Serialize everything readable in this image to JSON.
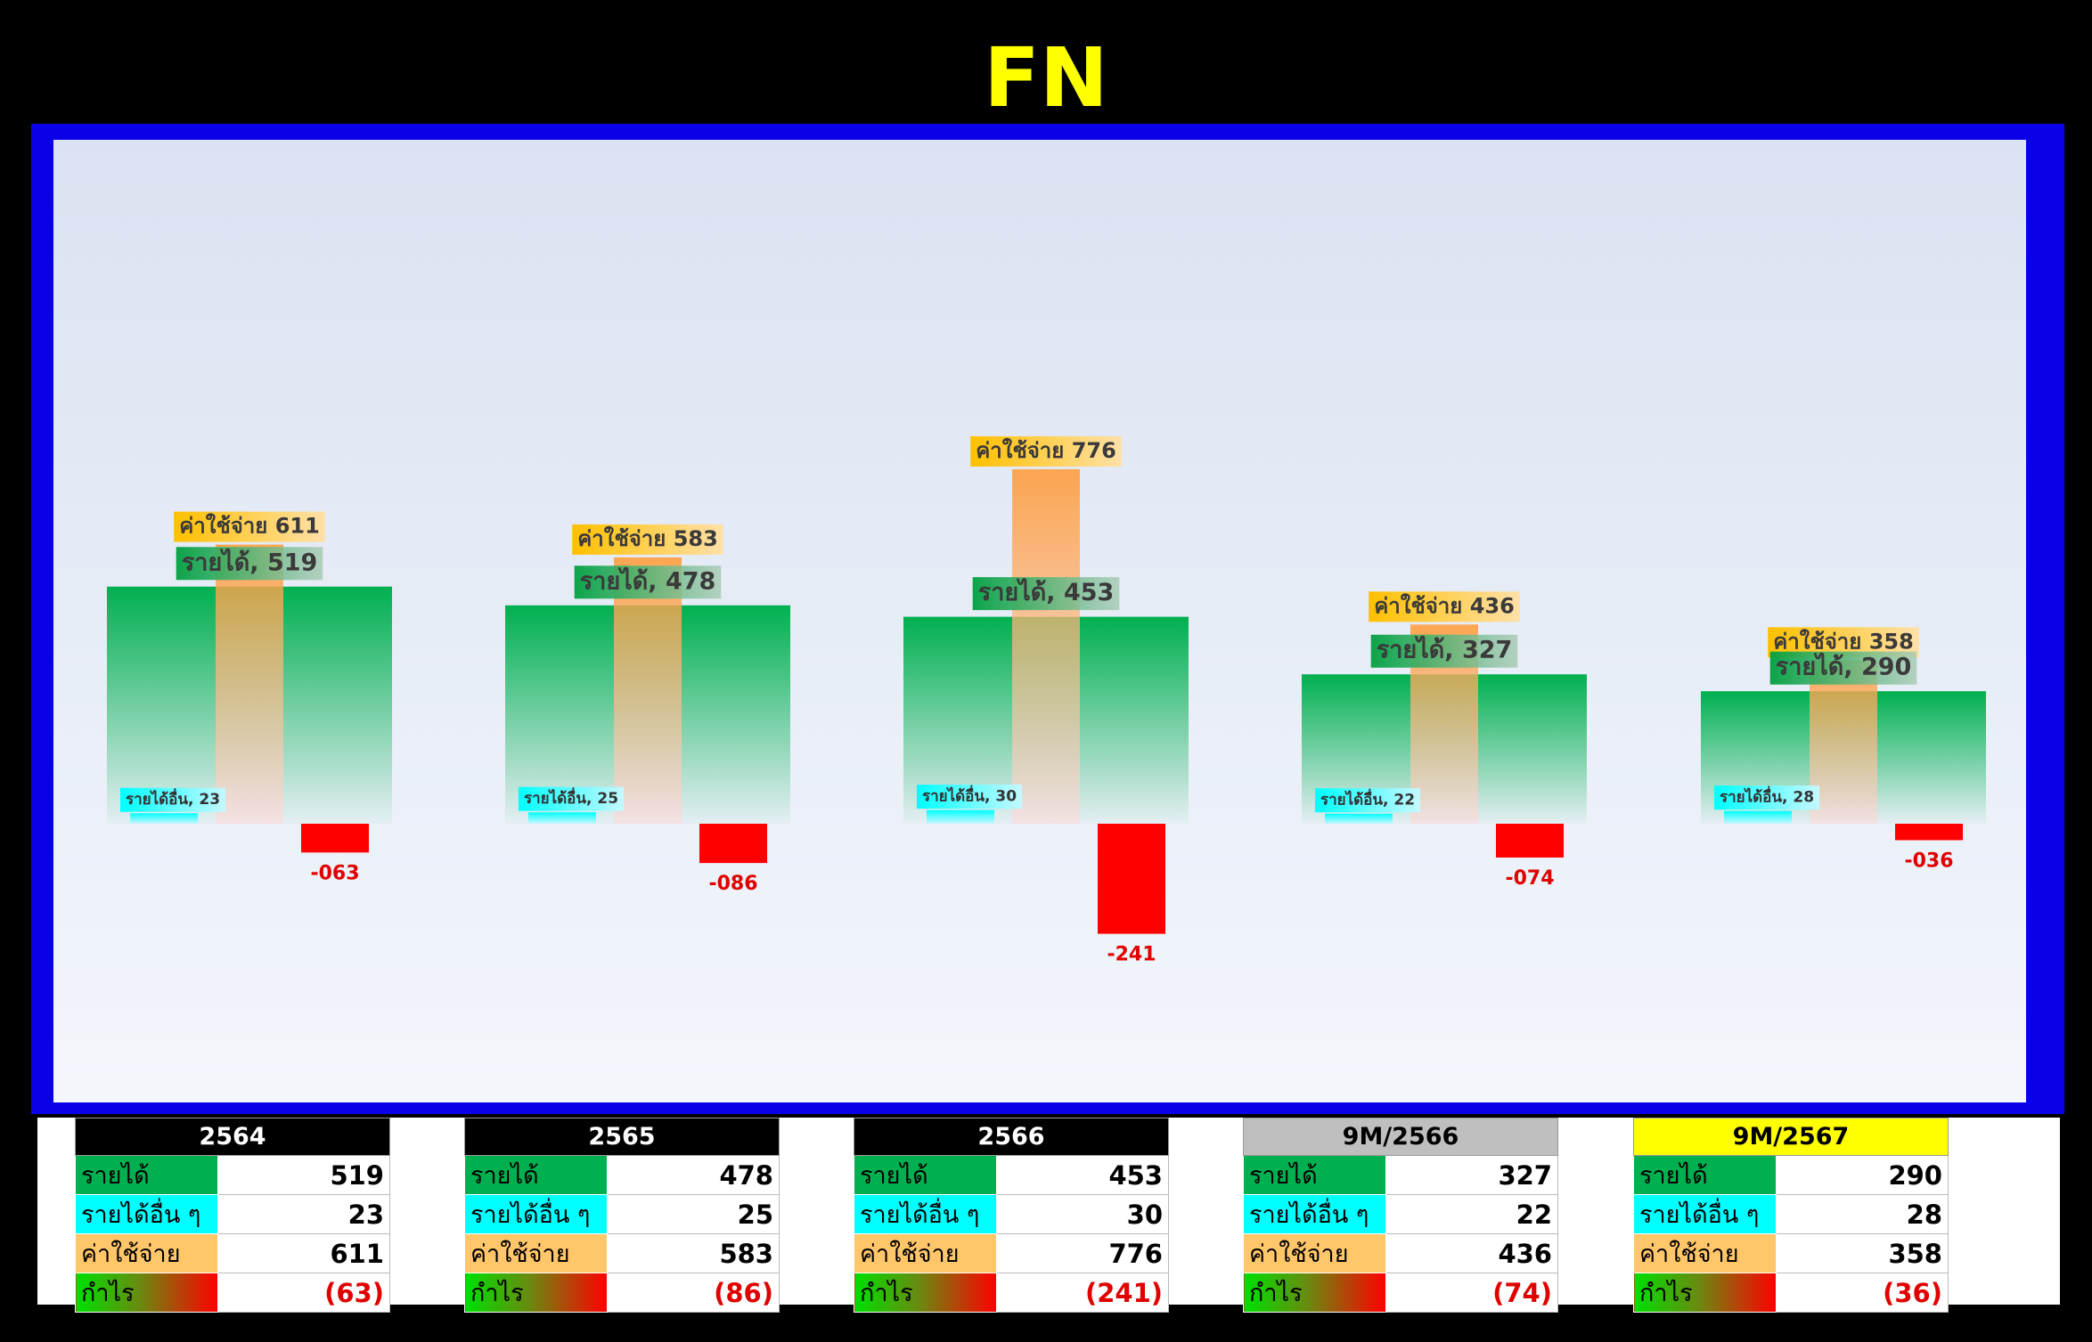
{
  "title": "FN",
  "chart_data": {
    "type": "bar",
    "categories": [
      "2564",
      "2565",
      "2566",
      "9M/2566",
      "9M/2567"
    ],
    "series": [
      {
        "name": "รายได้",
        "values": [
          519,
          478,
          453,
          327,
          290
        ],
        "labels": [
          "รายได้, 519",
          "รายได้, 478",
          "รายได้, 453",
          "รายได้, 327",
          "รายได้, 290"
        ]
      },
      {
        "name": "รายได้อื่น",
        "values": [
          23,
          25,
          30,
          22,
          28
        ],
        "labels": [
          "รายได้อื่น, 23",
          "รายได้อื่น, 25",
          "รายได้อื่น, 30",
          "รายได้อื่น, 22",
          "รายได้อื่น, 28"
        ]
      },
      {
        "name": "ค่าใช้จ่าย",
        "values": [
          611,
          583,
          776,
          436,
          358
        ],
        "labels": [
          "ค่าใช้จ่าย 611",
          "ค่าใช้จ่าย 583",
          "ค่าใช้จ่าย 776",
          "ค่าใช้จ่าย 436",
          "ค่าใช้จ่าย 358"
        ]
      },
      {
        "name": "กำไร",
        "values": [
          -63,
          -86,
          -241,
          -74,
          -36
        ],
        "labels": [
          "-063",
          "-086",
          "-241",
          "-074",
          "-036"
        ]
      }
    ],
    "ylim": [
      -300,
      900
    ],
    "grid": false,
    "colors": {
      "revenue": "#00b050",
      "other": "#00ffff",
      "expense": "#ff9933",
      "profit": "#ff0000",
      "label": "#e00000"
    }
  },
  "tables": [
    {
      "year": "2564",
      "header_bg": "#000000",
      "header_fg": "#ffffff",
      "rows": [
        [
          "รายได้",
          "519"
        ],
        [
          "รายได้อื่น ๆ",
          "23"
        ],
        [
          "ค่าใช้จ่าย",
          "611"
        ],
        [
          "กำไร",
          "(63)"
        ]
      ]
    },
    {
      "year": "2565",
      "header_bg": "#000000",
      "header_fg": "#ffffff",
      "rows": [
        [
          "รายได้",
          "478"
        ],
        [
          "รายได้อื่น ๆ",
          "25"
        ],
        [
          "ค่าใช้จ่าย",
          "583"
        ],
        [
          "กำไร",
          "(86)"
        ]
      ]
    },
    {
      "year": "2566",
      "header_bg": "#000000",
      "header_fg": "#ffffff",
      "rows": [
        [
          "รายได้",
          "453"
        ],
        [
          "รายได้อื่น ๆ",
          "30"
        ],
        [
          "ค่าใช้จ่าย",
          "776"
        ],
        [
          "กำไร",
          "(241)"
        ]
      ]
    },
    {
      "year": "9M/2566",
      "header_bg": "#bfbfbf",
      "header_fg": "#000000",
      "rows": [
        [
          "รายได้",
          "327"
        ],
        [
          "รายได้อื่น ๆ",
          "22"
        ],
        [
          "ค่าใช้จ่าย",
          "436"
        ],
        [
          "กำไร",
          "(74)"
        ]
      ]
    },
    {
      "year": "9M/2567",
      "header_bg": "#ffff00",
      "header_fg": "#000000",
      "rows": [
        [
          "รายได้",
          "290"
        ],
        [
          "รายได้อื่น ๆ",
          "28"
        ],
        [
          "ค่าใช้จ่าย",
          "358"
        ],
        [
          "กำไร",
          "(36)"
        ]
      ]
    }
  ]
}
